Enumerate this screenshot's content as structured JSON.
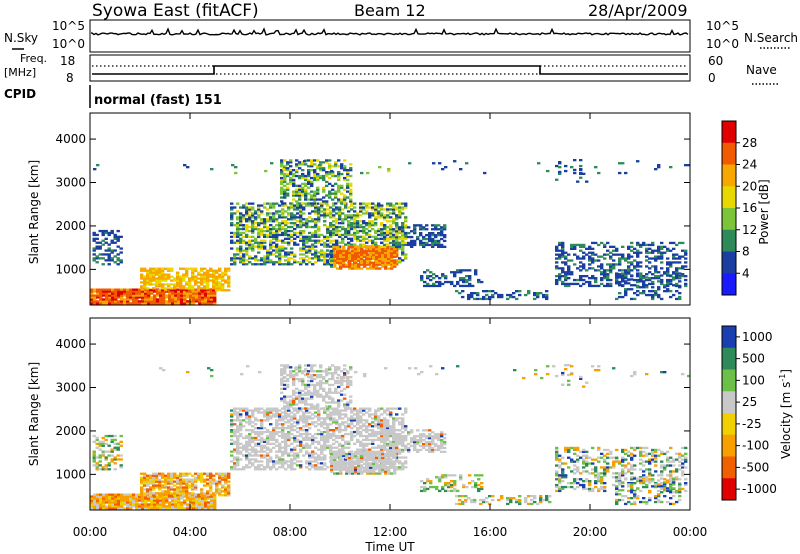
{
  "header": {
    "title": "Syowa East (fitACF)",
    "beam": "Beam 12",
    "date": "28/Apr/2009"
  },
  "noise_panel": {
    "left_label": "N.Sky",
    "right_label": "N.Search",
    "left_ticks": [
      "10^5",
      "10^0"
    ],
    "right_ticks": [
      "10^5",
      "10^0"
    ]
  },
  "freq_panel": {
    "left_label_line1": "Freq.",
    "left_label_line2": "[MHz]",
    "left_ticks": [
      "18",
      "8"
    ],
    "right_label": "Nave",
    "right_ticks": [
      "60",
      "0"
    ]
  },
  "cpid_panel": {
    "label": "CPID",
    "mode_text": "normal (fast) 151"
  },
  "chart_data": [
    {
      "type": "heatmap",
      "name": "power",
      "ylabel": "Slant Range [km]",
      "yticks": [
        "4000",
        "3000",
        "2000",
        "1000"
      ],
      "colorbar_label": "Power [dB]",
      "colorbar_ticks": [
        "28",
        "24",
        "20",
        "16",
        "12",
        "8",
        "4"
      ],
      "colorbar_colors": [
        "#e00000",
        "#f05a00",
        "#f7a800",
        "#e8d800",
        "#7cc43a",
        "#2f8a5a",
        "#1a3fa0",
        "#1a1aff"
      ]
    },
    {
      "type": "heatmap",
      "name": "velocity",
      "ylabel": "Slant Range [km]",
      "yticks": [
        "4000",
        "3000",
        "2000",
        "1000"
      ],
      "colorbar_label": "Velocity [m s",
      "colorbar_label_sup": "-1",
      "colorbar_label_end": "]",
      "colorbar_ticks": [
        "1000",
        "500",
        "100",
        "25",
        "-25",
        "-100",
        "-500",
        "-1000"
      ],
      "colorbar_colors": [
        "#1a3fb0",
        "#2f8a5a",
        "#6cc04a",
        "#c8c8c8",
        "#f0d000",
        "#f7a000",
        "#f06000",
        "#e00000"
      ]
    }
  ],
  "xaxis": {
    "ticks": [
      "00:00",
      "04:00",
      "08:00",
      "12:00",
      "16:00",
      "20:00",
      "00:00"
    ],
    "label": "Time UT"
  }
}
